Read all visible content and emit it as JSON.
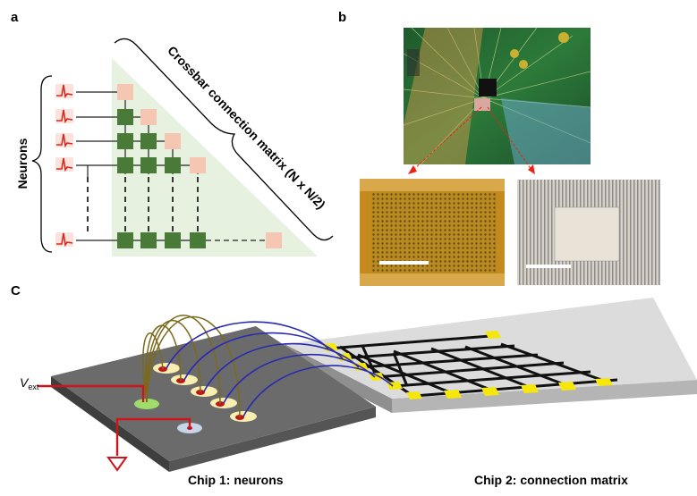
{
  "panels": {
    "a": {
      "label": "a",
      "neurons_label": "Neurons",
      "crossbar_label": "Crossbar connection matrix (N x N/2)"
    },
    "b": {
      "label": "b"
    },
    "c": {
      "label": "C",
      "vext_symbol": "V",
      "vext_subscript": "ext",
      "chip1_label": "Chip 1: neurons",
      "chip2_label": "Chip 2: connection matrix"
    }
  },
  "colors": {
    "triangle_fill": "#e6f2df",
    "node_green": "#4a7a37",
    "node_pink": "#f5c7b3",
    "spike_red": "#d62a1e",
    "chip1_top": "#6b6b6b",
    "chip2_top": "#dcdcdc",
    "pad_yellow": "#f5e70a",
    "arc_blue": "#2a2ab0",
    "arc_olive": "#7a6a1a",
    "wire_red": "#d0141b"
  }
}
